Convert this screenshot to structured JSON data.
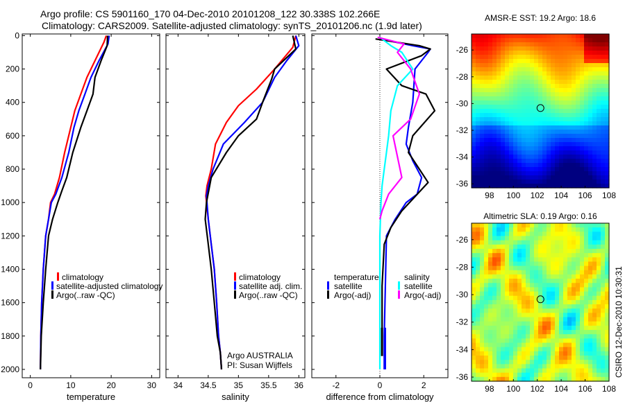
{
  "header": {
    "line1": "Argo profile: CS 5901160_170 04-Dec-2010 20101208_122 30.338S 102.266E",
    "line2": "Climatology: CARS2009. Satellite-adjusted climatology: synTS_20101206.nc (1.9d later)"
  },
  "colors": {
    "climatology": "#ff0000",
    "satellite": "#0000ff",
    "argo": "#000000",
    "salinity_sat": "#00ffff",
    "salinity_argo": "#ff00ff"
  },
  "chart_data": [
    {
      "type": "line",
      "xlabel": "temperature",
      "xlim": [
        -2,
        32
      ],
      "ylim": [
        2050,
        -10
      ],
      "y_reversed": true,
      "xticks": [
        0,
        10,
        20,
        30
      ],
      "yticks": [
        0,
        200,
        400,
        600,
        800,
        1000,
        1200,
        1400,
        1600,
        1800,
        2000
      ],
      "legend": [
        "climatology",
        "satellite-adjusted climatology",
        "Argo(..raw -QC)"
      ],
      "series": [
        {
          "name": "climatology",
          "color": "#ff0000",
          "x": [
            18.8,
            18.2,
            16,
            14,
            12.5,
            11,
            10,
            8.5,
            7.2,
            6,
            5,
            4.5,
            3.8,
            3.2,
            2.8,
            2.6,
            2.5
          ],
          "y": [
            0,
            40,
            150,
            250,
            350,
            450,
            550,
            700,
            850,
            950,
            1000,
            1100,
            1200,
            1400,
            1600,
            1800,
            2000
          ]
        },
        {
          "name": "satellite-adjusted climatology",
          "color": "#0000ff",
          "x": [
            19.5,
            19.2,
            17,
            15,
            13.5,
            12,
            10.8,
            9.5,
            7.8,
            6.3,
            5.2,
            4.5,
            3.8,
            3.2,
            2.8,
            2.6,
            2.5
          ],
          "y": [
            0,
            50,
            150,
            250,
            350,
            450,
            550,
            700,
            850,
            950,
            1000,
            1100,
            1200,
            1400,
            1600,
            1800,
            2000
          ]
        },
        {
          "name": "Argo(..raw -QC)",
          "color": "#000000",
          "x": [
            19.1,
            19,
            17.5,
            16,
            15.5,
            14,
            12.5,
            10.5,
            9,
            7.8,
            6.8,
            5.5,
            4.5,
            3.8,
            3.2,
            2.7,
            2.5
          ],
          "y": [
            0,
            60,
            150,
            250,
            350,
            450,
            550,
            700,
            850,
            930,
            1000,
            1100,
            1200,
            1400,
            1600,
            1800,
            2000
          ]
        }
      ]
    },
    {
      "type": "line",
      "xlabel": "salinity",
      "xlim": [
        33.8,
        36.1
      ],
      "ylim": [
        2050,
        -10
      ],
      "y_reversed": true,
      "xticks": [
        34,
        34.5,
        35,
        35.5,
        36
      ],
      "legend": [
        "climatology",
        "satellite adj. clim.",
        "Argo(..raw -QC)"
      ],
      "annotations": [
        "Argo AUSTRALIA",
        "PI: Susan Wijffels"
      ],
      "series": [
        {
          "name": "climatology",
          "color": "#ff0000",
          "x": [
            35.95,
            35.9,
            35.6,
            35.3,
            35.0,
            34.8,
            34.62,
            34.55,
            34.48,
            34.46,
            34.5,
            34.55,
            34.6,
            34.64,
            34.67,
            34.7,
            34.72
          ],
          "y": [
            0,
            70,
            200,
            320,
            420,
            520,
            650,
            800,
            900,
            960,
            1100,
            1250,
            1400,
            1600,
            1800,
            1900,
            2000
          ]
        },
        {
          "name": "satellite adj. clim.",
          "color": "#0000ff",
          "x": [
            35.95,
            36.0,
            35.8,
            35.6,
            35.4,
            35.1,
            34.75,
            34.58,
            34.5,
            34.47,
            34.5,
            34.55,
            34.6,
            34.64,
            34.67,
            34.7,
            34.72
          ],
          "y": [
            0,
            60,
            150,
            250,
            400,
            520,
            650,
            800,
            900,
            960,
            1100,
            1250,
            1400,
            1600,
            1800,
            1900,
            2000
          ]
        },
        {
          "name": "Argo(..raw -QC)",
          "color": "#000000",
          "x": [
            35.9,
            35.95,
            35.6,
            35.55,
            35.4,
            35.3,
            35.0,
            34.8,
            34.55,
            34.47,
            34.45,
            34.5,
            34.55,
            34.6,
            34.65,
            34.7,
            34.72
          ],
          "y": [
            0,
            80,
            200,
            260,
            400,
            500,
            600,
            700,
            850,
            1000,
            1100,
            1250,
            1400,
            1600,
            1800,
            1900,
            2000
          ]
        }
      ]
    },
    {
      "type": "line",
      "xlabel": "difference from climatology",
      "xlim": [
        -3.1,
        3.1
      ],
      "ylim": [
        2050,
        -10
      ],
      "y_reversed": true,
      "xticks": [
        -2,
        0,
        2
      ],
      "legend_temperature": {
        "title": "temperature",
        "items": [
          "satellite",
          "Argo(-adj)"
        ]
      },
      "legend_salinity": {
        "title": "salinity",
        "items": [
          "satellite",
          "Argo(-adj)"
        ]
      },
      "series": [
        {
          "name": "temperature satellite",
          "color": "#0000ff",
          "x": [
            0.0,
            1.5,
            2.3,
            2.2,
            1.6,
            1.5,
            1.3,
            1.2,
            1.5,
            1.9,
            1.7,
            1.2,
            0.7,
            0.3,
            0.25,
            0.2,
            0.2
          ],
          "y": [
            20,
            60,
            80,
            100,
            200,
            400,
            550,
            650,
            750,
            850,
            950,
            1000,
            1100,
            1200,
            1500,
            1800,
            2000
          ]
        },
        {
          "name": "temperature Argo(-adj)",
          "color": "#000000",
          "x": [
            -0.2,
            1.8,
            2.3,
            1.9,
            0.3,
            1.0,
            2.1,
            2.5,
            1.5,
            1.3,
            2.2,
            1.0,
            0.5,
            0.2,
            0.1,
            0.1,
            0.1
          ],
          "y": [
            20,
            60,
            80,
            120,
            200,
            300,
            350,
            450,
            600,
            700,
            880,
            1050,
            1150,
            1250,
            1500,
            1750,
            1900
          ]
        },
        {
          "name": "salinity satellite",
          "color": "#00ffff",
          "x": [
            0.0,
            0.5,
            1.0,
            1.5,
            0.8,
            0.5,
            0.4,
            0.3,
            0.2,
            0.1,
            0.05,
            0.0,
            0.0,
            0.0,
            0.0
          ],
          "y": [
            10,
            60,
            100,
            200,
            300,
            450,
            600,
            700,
            800,
            900,
            1000,
            1200,
            1500,
            1800,
            2000
          ]
        },
        {
          "name": "salinity Argo(-adj)",
          "color": "#ff00ff",
          "x": [
            -0.1,
            1.1,
            0.8,
            1.4,
            1.8,
            1.4,
            0.6,
            1.0,
            0.4,
            0.1,
            0.0
          ],
          "y": [
            10,
            50,
            100,
            200,
            350,
            500,
            600,
            850,
            950,
            1050,
            1100
          ]
        }
      ]
    },
    {
      "type": "heatmap",
      "title": "AMSR-E SST: 19.2 Argo: 18.6",
      "xlim": [
        96.5,
        108
      ],
      "ylim": [
        -36.3,
        -24.8
      ],
      "xticks": [
        98,
        100,
        102,
        104,
        106,
        108
      ],
      "yticks": [
        -26,
        -28,
        -30,
        -32,
        -34,
        -36
      ],
      "marker": {
        "lon": 102.266,
        "lat": -30.338
      },
      "colormap": "jet"
    },
    {
      "type": "heatmap",
      "title": "Altimetric SLA: 0.19 Argo: 0.16",
      "xlim": [
        96.5,
        108
      ],
      "ylim": [
        -36.3,
        -24.8
      ],
      "xticks": [
        98,
        100,
        102,
        104,
        106,
        108
      ],
      "yticks": [
        -26,
        -28,
        -30,
        -32,
        -34,
        -36
      ],
      "marker": {
        "lon": 102.266,
        "lat": -30.338
      },
      "colormap": "jet"
    }
  ],
  "footer": {
    "credit": "CSIRO 12-Dec-2010 10:30:31"
  }
}
